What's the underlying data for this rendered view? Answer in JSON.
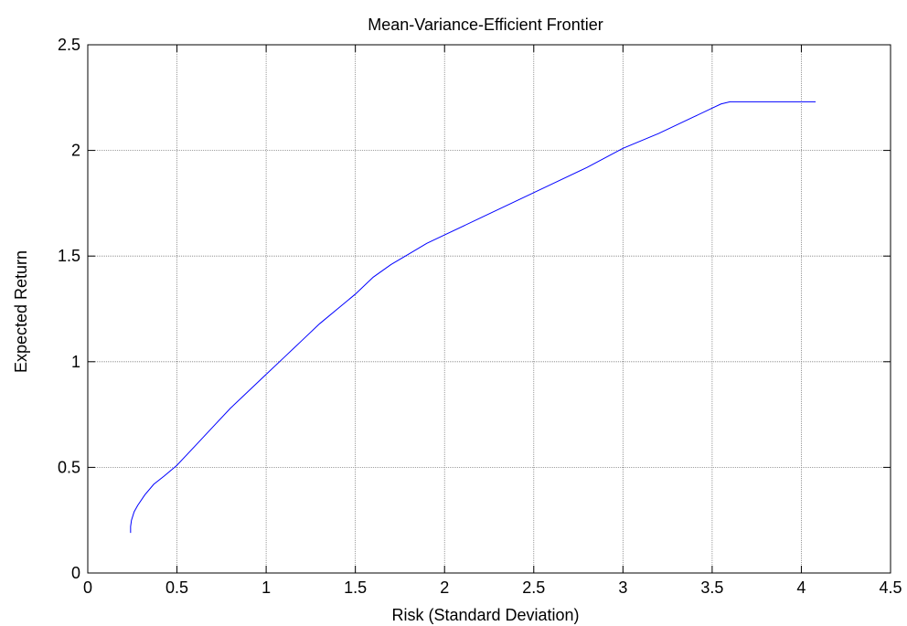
{
  "chart_data": {
    "type": "line",
    "title": "Mean-Variance-Efficient Frontier",
    "xlabel": "Risk (Standard Deviation)",
    "ylabel": "Expected Return",
    "xlim": [
      0,
      4.5
    ],
    "ylim": [
      0,
      2.5
    ],
    "xticks": [
      "0",
      "0.5",
      "1",
      "1.5",
      "2",
      "2.5",
      "3",
      "3.5",
      "4",
      "4.5"
    ],
    "yticks": [
      "0",
      "0.5",
      "1",
      "1.5",
      "2",
      "2.5"
    ],
    "grid": true,
    "colors": {
      "line": "#0000ff",
      "grid": "#808080",
      "axes": "#000000"
    },
    "series": [
      {
        "x": [
          0.24,
          0.24,
          0.245,
          0.26,
          0.28,
          0.32,
          0.37,
          0.43,
          0.5,
          0.6,
          0.7,
          0.8,
          0.9,
          1.0,
          1.1,
          1.2,
          1.3,
          1.4,
          1.5,
          1.6,
          1.7,
          1.8,
          1.9,
          2.0,
          2.2,
          2.4,
          2.6,
          2.8,
          3.0,
          3.2,
          3.4,
          3.5,
          3.55,
          3.6,
          3.7,
          3.8,
          3.9,
          4.0,
          4.08
        ],
        "y": [
          0.19,
          0.22,
          0.25,
          0.29,
          0.32,
          0.37,
          0.42,
          0.46,
          0.51,
          0.6,
          0.69,
          0.78,
          0.86,
          0.94,
          1.02,
          1.1,
          1.18,
          1.25,
          1.32,
          1.4,
          1.46,
          1.51,
          1.56,
          1.6,
          1.68,
          1.76,
          1.84,
          1.92,
          2.01,
          2.08,
          2.16,
          2.2,
          2.22,
          2.23,
          2.23,
          2.23,
          2.23,
          2.23,
          2.23
        ]
      }
    ]
  }
}
